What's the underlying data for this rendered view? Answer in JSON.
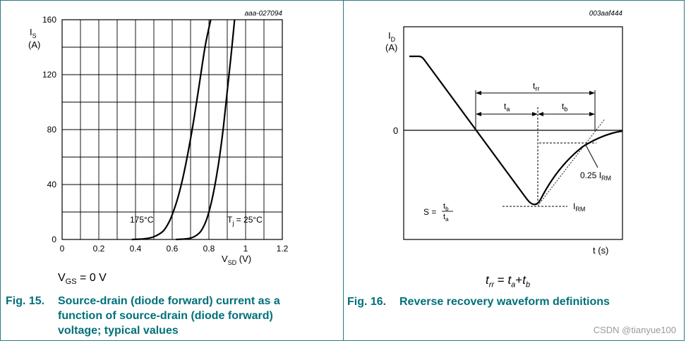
{
  "fig15": {
    "caption_num": "Fig. 15.",
    "caption_text": "Source-drain (diode forward) current as a function of source-drain (diode forward) voltage; typical values",
    "condition_main": "V",
    "condition_sub": "GS",
    "condition_rest": " = 0 V",
    "chart_data": {
      "type": "line",
      "code": "aaa-027094",
      "ylabel_main": "I",
      "ylabel_sub": "S",
      "yunit": "(A)",
      "xlabel_main": "V",
      "xlabel_sub": "SD",
      "xunit": " (V)",
      "xlim": [
        0,
        1.2
      ],
      "ylim": [
        0,
        160
      ],
      "xticks": [
        "0",
        "0.2",
        "0.4",
        "0.6",
        "0.8",
        "1",
        "1.2"
      ],
      "yticks": [
        "0",
        "40",
        "80",
        "120",
        "160"
      ],
      "grid": true,
      "series": [
        {
          "label": "175°C",
          "x": [
            0.38,
            0.45,
            0.5,
            0.55,
            0.58,
            0.6,
            0.63,
            0.66,
            0.69,
            0.72,
            0.75,
            0.78,
            0.81
          ],
          "y": [
            0,
            0.5,
            2,
            6,
            12,
            18,
            30,
            46,
            66,
            89,
            115,
            141,
            160
          ]
        },
        {
          "label_main": "T",
          "label_sub": "j",
          "label_rest": " = 25°C",
          "x": [
            0.62,
            0.7,
            0.75,
            0.78,
            0.8,
            0.82,
            0.84,
            0.86,
            0.88,
            0.9,
            0.92,
            0.94
          ],
          "y": [
            0,
            1,
            5,
            12,
            20,
            31,
            45,
            62,
            83,
            108,
            133,
            160
          ]
        }
      ]
    }
  },
  "fig16": {
    "caption_num": "Fig. 16.",
    "caption_text": "Reverse recovery waveform definitions",
    "code": "003aaf444",
    "ylabel_main": "I",
    "ylabel_sub": "D",
    "yunit": "(A)",
    "zero": "0",
    "xlabel": "t (s)",
    "trr_main": "t",
    "trr_sub": "rr",
    "ta_main": "t",
    "ta_sub": "a",
    "tb_main": "t",
    "tb_sub": "b",
    "irm_main": "I",
    "irm_sub": "RM",
    "irm25_prefix": "0.25 I",
    "irm25_sub": "RM",
    "s_label": "S =",
    "s_num_main": "t",
    "s_num_sub": "b",
    "s_den_main": "t",
    "s_den_sub": "a",
    "eq_trr": "t",
    "eq_trr_sub": "rr",
    "eq_mid": " = ",
    "eq_ta": "t",
    "eq_ta_sub": "a",
    "eq_plus": "+",
    "eq_tb": "t",
    "eq_tb_sub": "b"
  },
  "watermark": "CSDN @tianyue100"
}
